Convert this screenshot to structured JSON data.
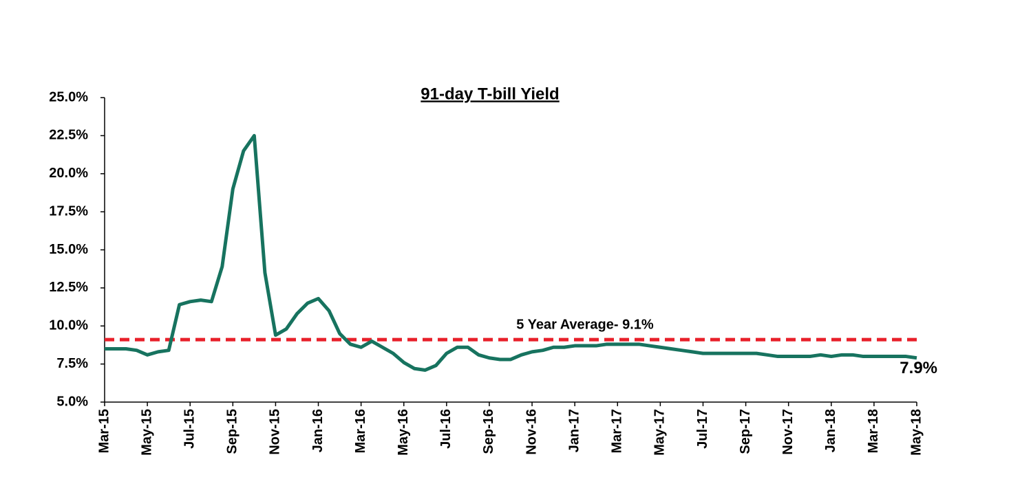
{
  "chart_data": {
    "type": "line",
    "title": "91-day T-bill Yield",
    "categories": [
      "Mar-15",
      null,
      null,
      null,
      "May-15",
      null,
      null,
      null,
      "Jul-15",
      null,
      null,
      null,
      "Sep-15",
      null,
      null,
      null,
      "Nov-15",
      null,
      null,
      null,
      "Jan-16",
      null,
      null,
      null,
      "Mar-16",
      null,
      null,
      null,
      "May-16",
      null,
      null,
      null,
      "Jul-16",
      null,
      null,
      null,
      "Sep-16",
      null,
      null,
      null,
      "Nov-16",
      null,
      null,
      null,
      "Jan-17",
      null,
      null,
      null,
      "Mar-17",
      null,
      null,
      null,
      "May-17",
      null,
      null,
      null,
      "Jul-17",
      null,
      null,
      null,
      "Sep-17",
      null,
      null,
      null,
      "Nov-17",
      null,
      null,
      null,
      "Jan-18",
      null,
      null,
      null,
      "Mar-18",
      null,
      null,
      null,
      "May-18"
    ],
    "series": [
      {
        "name": "91-day T-bill Yield",
        "color": "#17735f",
        "values": [
          8.5,
          8.5,
          8.5,
          8.4,
          8.1,
          8.3,
          8.4,
          11.4,
          11.6,
          11.7,
          11.6,
          13.9,
          19.0,
          21.5,
          22.5,
          13.5,
          9.4,
          9.8,
          10.8,
          11.5,
          11.8,
          11.0,
          9.5,
          8.8,
          8.6,
          9.0,
          8.6,
          8.2,
          7.6,
          7.2,
          7.1,
          7.4,
          8.2,
          8.6,
          8.6,
          8.1,
          7.9,
          7.8,
          7.8,
          8.1,
          8.3,
          8.4,
          8.6,
          8.6,
          8.7,
          8.7,
          8.7,
          8.8,
          8.8,
          8.8,
          8.8,
          8.7,
          8.6,
          8.5,
          8.4,
          8.3,
          8.2,
          8.2,
          8.2,
          8.2,
          8.2,
          8.2,
          8.1,
          8.0,
          8.0,
          8.0,
          8.0,
          8.1,
          8.0,
          8.1,
          8.1,
          8.0,
          8.0,
          8.0,
          8.0,
          8.0,
          7.9
        ]
      }
    ],
    "last_value_label": "7.9%",
    "reference_line": {
      "value": 9.1,
      "label": "5 Year Average- 9.1%",
      "color": "#e8202a"
    },
    "ylim": [
      5,
      25
    ],
    "yticks": [
      {
        "value": 5,
        "label": "5.0%"
      },
      {
        "value": 7.5,
        "label": "7.5%"
      },
      {
        "value": 10,
        "label": "10.0%"
      },
      {
        "value": 12.5,
        "label": "12.5%"
      },
      {
        "value": 15,
        "label": "15.0%"
      },
      {
        "value": 17.5,
        "label": "17.5%"
      },
      {
        "value": 20,
        "label": "20.0%"
      },
      {
        "value": 22.5,
        "label": "22.5%"
      },
      {
        "value": 25,
        "label": "25.0%"
      }
    ],
    "grid": false
  }
}
